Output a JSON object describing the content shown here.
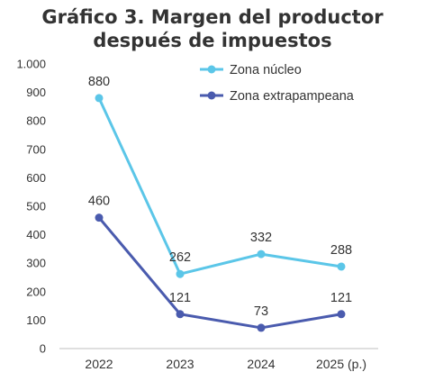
{
  "title_lines": [
    "Gráfico 3. Margen del productor",
    "después de impuestos"
  ],
  "colors": {
    "zona_nucleo": "#5BC6E8",
    "zona_extrapampeana": "#4A5BAE",
    "axis": "#bfbfbf",
    "text": "#333333"
  },
  "chart_data": {
    "type": "line",
    "title": "Gráfico 3. Margen del productor después de impuestos",
    "categories": [
      "2022",
      "2023",
      "2024",
      "2025 (p.)"
    ],
    "ylim": [
      0,
      1000
    ],
    "yticks": [
      0,
      100,
      200,
      300,
      400,
      500,
      600,
      700,
      800,
      900,
      1000
    ],
    "ytick_labels": [
      "0",
      "100",
      "200",
      "300",
      "400",
      "500",
      "600",
      "700",
      "800",
      "900",
      "1.000"
    ],
    "grid": false,
    "legend_position": "top-right",
    "series": [
      {
        "name": "Zona núcleo",
        "values": [
          880,
          262,
          332,
          288
        ],
        "labels": [
          "880",
          "262",
          "332",
          "288"
        ]
      },
      {
        "name": "Zona extrapampeana",
        "values": [
          460,
          121,
          73,
          121
        ],
        "labels": [
          "460",
          "121",
          "73",
          "121"
        ]
      }
    ]
  }
}
